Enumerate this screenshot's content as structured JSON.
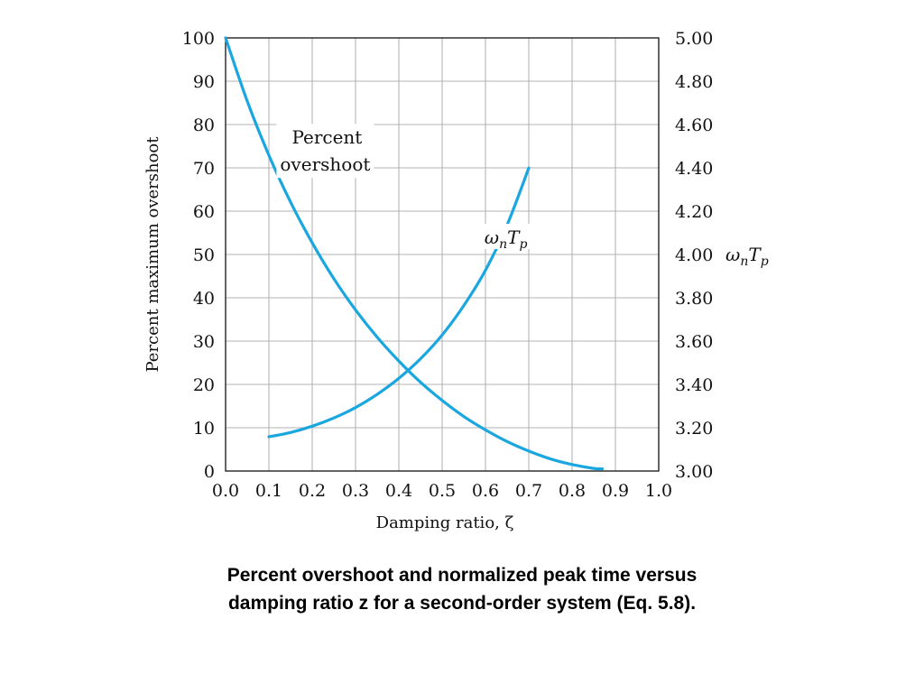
{
  "caption": {
    "line1": "Percent overshoot and normalized peak time versus",
    "line2": "damping ratio z for a second-order system (Eq. 5.8)."
  },
  "chart_data": {
    "type": "line",
    "xlabel": "Damping ratio, ζ",
    "ylabel": "Percent maximum overshoot",
    "y2label": "ωnTp",
    "xlim": [
      0.0,
      1.0
    ],
    "ylim": [
      0,
      100
    ],
    "y2lim": [
      3.0,
      5.0
    ],
    "x_ticks": [
      "0.0",
      "0.1",
      "0.2",
      "0.3",
      "0.4",
      "0.5",
      "0.6",
      "0.7",
      "0.8",
      "0.9",
      "1.0"
    ],
    "y_ticks": [
      "0",
      "10",
      "20",
      "30",
      "40",
      "50",
      "60",
      "70",
      "80",
      "90",
      "100"
    ],
    "y2_ticks": [
      "3.00",
      "3.20",
      "3.40",
      "3.60",
      "3.80",
      "4.00",
      "4.20",
      "4.40",
      "4.60",
      "4.80",
      "5.00"
    ],
    "grid": true,
    "series": [
      {
        "name": "Percent overshoot",
        "axis": "left",
        "color": "#1aa7e0",
        "x": [
          0.0,
          0.05,
          0.1,
          0.15,
          0.2,
          0.25,
          0.3,
          0.35,
          0.4,
          0.45,
          0.5,
          0.55,
          0.6,
          0.65,
          0.7,
          0.75,
          0.8,
          0.85,
          0.87
        ],
        "y": [
          100,
          85.4,
          72.9,
          62.1,
          52.7,
          44.4,
          37.2,
          30.9,
          25.4,
          20.5,
          16.3,
          12.6,
          9.5,
          6.8,
          4.6,
          2.8,
          1.5,
          0.6,
          0.5
        ]
      },
      {
        "name": "ωnTp",
        "axis": "right",
        "color": "#1aa7e0",
        "x": [
          0.1,
          0.15,
          0.2,
          0.25,
          0.3,
          0.35,
          0.4,
          0.45,
          0.5,
          0.55,
          0.6,
          0.65,
          0.7
        ],
        "y": [
          3.158,
          3.178,
          3.207,
          3.245,
          3.293,
          3.354,
          3.428,
          3.518,
          3.628,
          3.764,
          3.927,
          4.136,
          4.399
        ]
      }
    ],
    "annotations": [
      {
        "line1": "Percent",
        "line2": "overshoot",
        "x": 0.23,
        "y": 73.5
      },
      {
        "label_base": "ωnTp",
        "x": 0.66,
        "y2": 4.05
      }
    ]
  }
}
